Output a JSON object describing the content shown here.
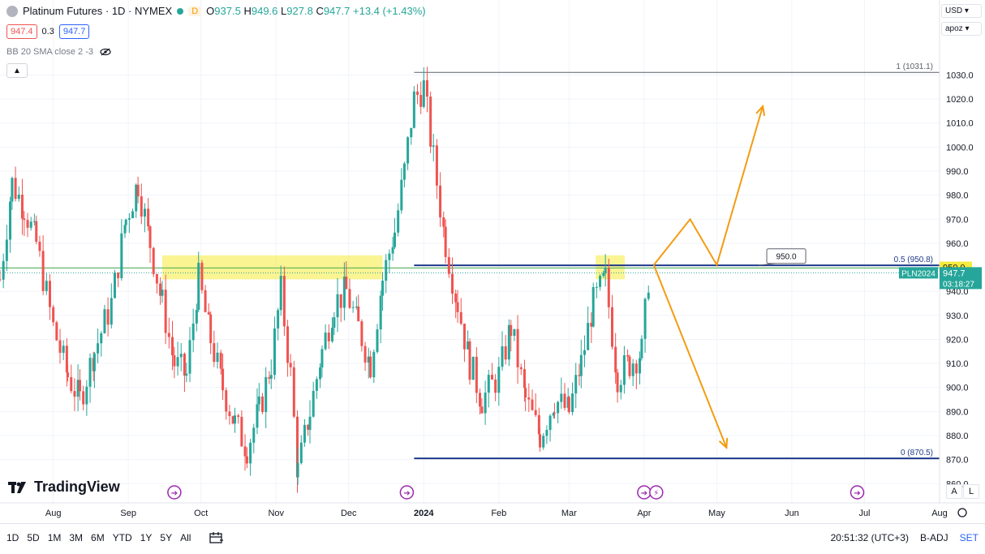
{
  "header": {
    "title": "Platinum Futures · 1D · NYMEX",
    "badge": "D",
    "ohlc": {
      "o_label": "O",
      "o_value": "937.5",
      "h_label": "H",
      "h_value": "949.6",
      "l_label": "L",
      "l_value": "927.8",
      "c_label": "C",
      "c_value": "947.7",
      "change": "+13.4 (+1.43%)"
    }
  },
  "quote": {
    "bid": "947.4",
    "spread": "0.3",
    "ask": "947.7"
  },
  "indicator": {
    "label": "BB 20 SMA close 2 -3",
    "icon": "eye-off-icon"
  },
  "currency": {
    "value": "USD"
  },
  "units": {
    "value": "apoz"
  },
  "brand": "TradingView",
  "chart_data": {
    "type": "candlestick",
    "title": "Platinum Futures · 1D · NYMEX",
    "ylim": [
      852,
      1045
    ],
    "y_ticks": [
      860,
      870,
      880,
      890,
      900,
      910,
      920,
      930,
      940,
      950,
      960,
      970,
      980,
      990,
      1000,
      1010,
      1020,
      1030
    ],
    "y_tick_labels": [
      "860.0",
      "870.0",
      "880.0",
      "890.0",
      "900.0",
      "910.0",
      "920.0",
      "930.0",
      "940.0",
      "950.0",
      "960.0",
      "970.0",
      "980.0",
      "990.0",
      "1000.0",
      "1010.0",
      "1020.0",
      "1030.0"
    ],
    "x_labels": [
      "Aug",
      "Sep",
      "Oct",
      "Nov",
      "Dec",
      "2024",
      "Feb",
      "Mar",
      "Apr",
      "May",
      "Jun",
      "Jul",
      "Aug"
    ],
    "x_label_dates": [
      "2023-08-01",
      "2023-09-01",
      "2023-10-01",
      "2023-11-01",
      "2023-12-01",
      "2024-01-01",
      "2024-02-01",
      "2024-03-01",
      "2024-04-01",
      "2024-05-01",
      "2024-06-01",
      "2024-07-01",
      "2024-08-01"
    ],
    "xlim": [
      "2023-07-10",
      "2024-08-01"
    ],
    "grid": true,
    "series": [
      {
        "kind": "close_path",
        "points": [
          [
            "2023-07-10",
            945
          ],
          [
            "2023-07-15",
            985
          ],
          [
            "2023-07-20",
            975
          ],
          [
            "2023-07-25",
            960
          ],
          [
            "2023-08-01",
            925
          ],
          [
            "2023-08-07",
            905
          ],
          [
            "2023-08-12",
            895
          ],
          [
            "2023-08-18",
            915
          ],
          [
            "2023-08-25",
            935
          ],
          [
            "2023-08-31",
            970
          ],
          [
            "2023-09-05",
            985
          ],
          [
            "2023-09-10",
            960
          ],
          [
            "2023-09-15",
            935
          ],
          [
            "2023-09-20",
            910
          ],
          [
            "2023-09-25",
            905
          ],
          [
            "2023-09-30",
            945
          ],
          [
            "2023-10-05",
            920
          ],
          [
            "2023-10-10",
            900
          ],
          [
            "2023-10-15",
            885
          ],
          [
            "2023-10-20",
            875
          ],
          [
            "2023-10-25",
            890
          ],
          [
            "2023-10-30",
            910
          ],
          [
            "2023-11-03",
            940
          ],
          [
            "2023-11-07",
            905
          ],
          [
            "2023-11-10",
            865
          ],
          [
            "2023-11-15",
            890
          ],
          [
            "2023-11-20",
            915
          ],
          [
            "2023-11-25",
            935
          ],
          [
            "2023-11-30",
            940
          ],
          [
            "2023-12-05",
            925
          ],
          [
            "2023-12-10",
            910
          ],
          [
            "2023-12-15",
            945
          ],
          [
            "2023-12-20",
            965
          ],
          [
            "2023-12-24",
            990
          ],
          [
            "2023-12-28",
            1020
          ],
          [
            "2024-01-01",
            1025
          ],
          [
            "2024-01-05",
            995
          ],
          [
            "2024-01-10",
            960
          ],
          [
            "2024-01-15",
            935
          ],
          [
            "2024-01-20",
            910
          ],
          [
            "2024-01-25",
            895
          ],
          [
            "2024-02-01",
            905
          ],
          [
            "2024-02-06",
            925
          ],
          [
            "2024-02-12",
            895
          ],
          [
            "2024-02-18",
            880
          ],
          [
            "2024-02-24",
            895
          ],
          [
            "2024-03-01",
            890
          ],
          [
            "2024-03-06",
            910
          ],
          [
            "2024-03-11",
            935
          ],
          [
            "2024-03-16",
            945
          ],
          [
            "2024-03-21",
            905
          ],
          [
            "2024-03-26",
            910
          ],
          [
            "2024-03-31",
            915
          ],
          [
            "2024-04-03",
            947.7
          ]
        ]
      }
    ],
    "last_price": 947.7,
    "last_price_label": "947.7",
    "symbol_label": "PLN2024",
    "countdown": "03:18:27",
    "green_line": 947.7,
    "fib": [
      {
        "label": "1 (1031.1)",
        "value": 1031.1
      },
      {
        "label": "0.5 (950.8)",
        "value": 950.8
      },
      {
        "label": "0 (870.5)",
        "value": 870.5
      }
    ],
    "fib_start": "2023-12-28",
    "highlight_zone": {
      "from": 945,
      "to": 955,
      "ranges": [
        [
          "2023-09-15",
          "2023-12-15"
        ],
        [
          "2024-03-12",
          "2024-03-24"
        ]
      ]
    },
    "callout": {
      "label": "950.0",
      "axis_label": "950.0"
    },
    "projection": {
      "up": [
        [
          "2024-04-05",
          951
        ],
        [
          "2024-04-20",
          970
        ],
        [
          "2024-05-01",
          951
        ],
        [
          "2024-05-20",
          1017
        ]
      ],
      "down": [
        [
          "2024-04-05",
          951
        ],
        [
          "2024-05-05",
          875
        ]
      ]
    },
    "event_markers": [
      "2023-09-20",
      "2023-12-25",
      "2024-04-01",
      "2024-04-06",
      "2024-06-28"
    ]
  },
  "time_axis_buttons": {
    "auto": "A",
    "log": "L"
  },
  "toolbar": {
    "ranges": [
      "1D",
      "5D",
      "1M",
      "3M",
      "6M",
      "YTD",
      "1Y",
      "5Y",
      "All"
    ],
    "time": "20:51:32 (UTC+3)",
    "adj": "B-ADJ",
    "set": "SET"
  }
}
